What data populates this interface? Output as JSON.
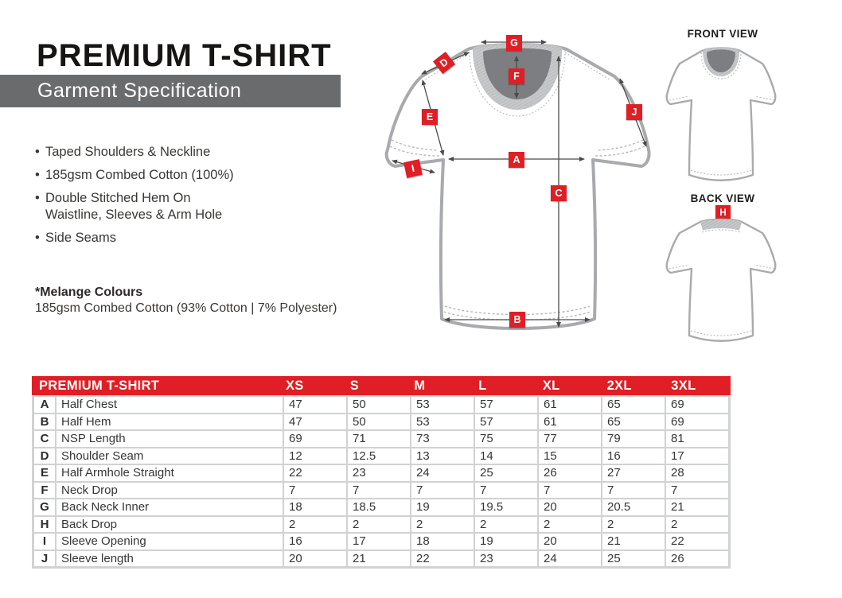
{
  "header": {
    "title": "PREMIUM T-SHIRT",
    "subtitle": "Garment Specification"
  },
  "features": {
    "items": [
      "Taped Shoulders & Neckline",
      "185gsm Combed Cotton (100%)",
      "Double Stitched Hem On\nWaistline, Sleeves & Arm Hole",
      "Side Seams"
    ]
  },
  "melange": {
    "title": "*Melange Colours",
    "description": "185gsm Combed Cotton (93% Cotton | 7% Polyester)"
  },
  "diagram": {
    "front_view_label": "FRONT VIEW",
    "back_view_label": "BACK VIEW",
    "badges": {
      "A": "A",
      "B": "B",
      "C": "C",
      "D": "D",
      "E": "E",
      "F": "F",
      "G": "G",
      "H": "H",
      "I": "I",
      "J": "J"
    }
  },
  "size_table": {
    "title": "PREMIUM T-SHIRT",
    "size_headers": [
      "XS",
      "S",
      "M",
      "L",
      "XL",
      "2XL",
      "3XL"
    ],
    "rows": [
      {
        "key": "A",
        "name": "Half Chest",
        "values": [
          "47",
          "50",
          "53",
          "57",
          "61",
          "65",
          "69"
        ]
      },
      {
        "key": "B",
        "name": "Half Hem",
        "values": [
          "47",
          "50",
          "53",
          "57",
          "61",
          "65",
          "69"
        ]
      },
      {
        "key": "C",
        "name": "NSP Length",
        "values": [
          "69",
          "71",
          "73",
          "75",
          "77",
          "79",
          "81"
        ]
      },
      {
        "key": "D",
        "name": "Shoulder Seam",
        "values": [
          "12",
          "12.5",
          "13",
          "14",
          "15",
          "16",
          "17"
        ]
      },
      {
        "key": "E",
        "name": "Half Armhole Straight",
        "values": [
          "22",
          "23",
          "24",
          "25",
          "26",
          "27",
          "28"
        ]
      },
      {
        "key": "F",
        "name": "Neck Drop",
        "values": [
          "7",
          "7",
          "7",
          "7",
          "7",
          "7",
          "7"
        ]
      },
      {
        "key": "G",
        "name": "Back Neck Inner",
        "values": [
          "18",
          "18.5",
          "19",
          "19.5",
          "20",
          "20.5",
          "21"
        ]
      },
      {
        "key": "H",
        "name": "Back Drop",
        "values": [
          "2",
          "2",
          "2",
          "2",
          "2",
          "2",
          "2"
        ]
      },
      {
        "key": "I",
        "name": "Sleeve Opening",
        "values": [
          "16",
          "17",
          "18",
          "19",
          "20",
          "21",
          "22"
        ]
      },
      {
        "key": "J",
        "name": "Sleeve length",
        "values": [
          "20",
          "21",
          "22",
          "23",
          "24",
          "25",
          "26"
        ]
      }
    ]
  },
  "colors": {
    "accent_red": "#df1f25",
    "banner_gray": "#6a6b6d",
    "table_gap_gray": "#d0d2d3",
    "shirt_gray": "#a8aaad",
    "collar_dark": "#7c7e81",
    "collar_band": "#c7c8ca",
    "text_dark": "#363636"
  }
}
